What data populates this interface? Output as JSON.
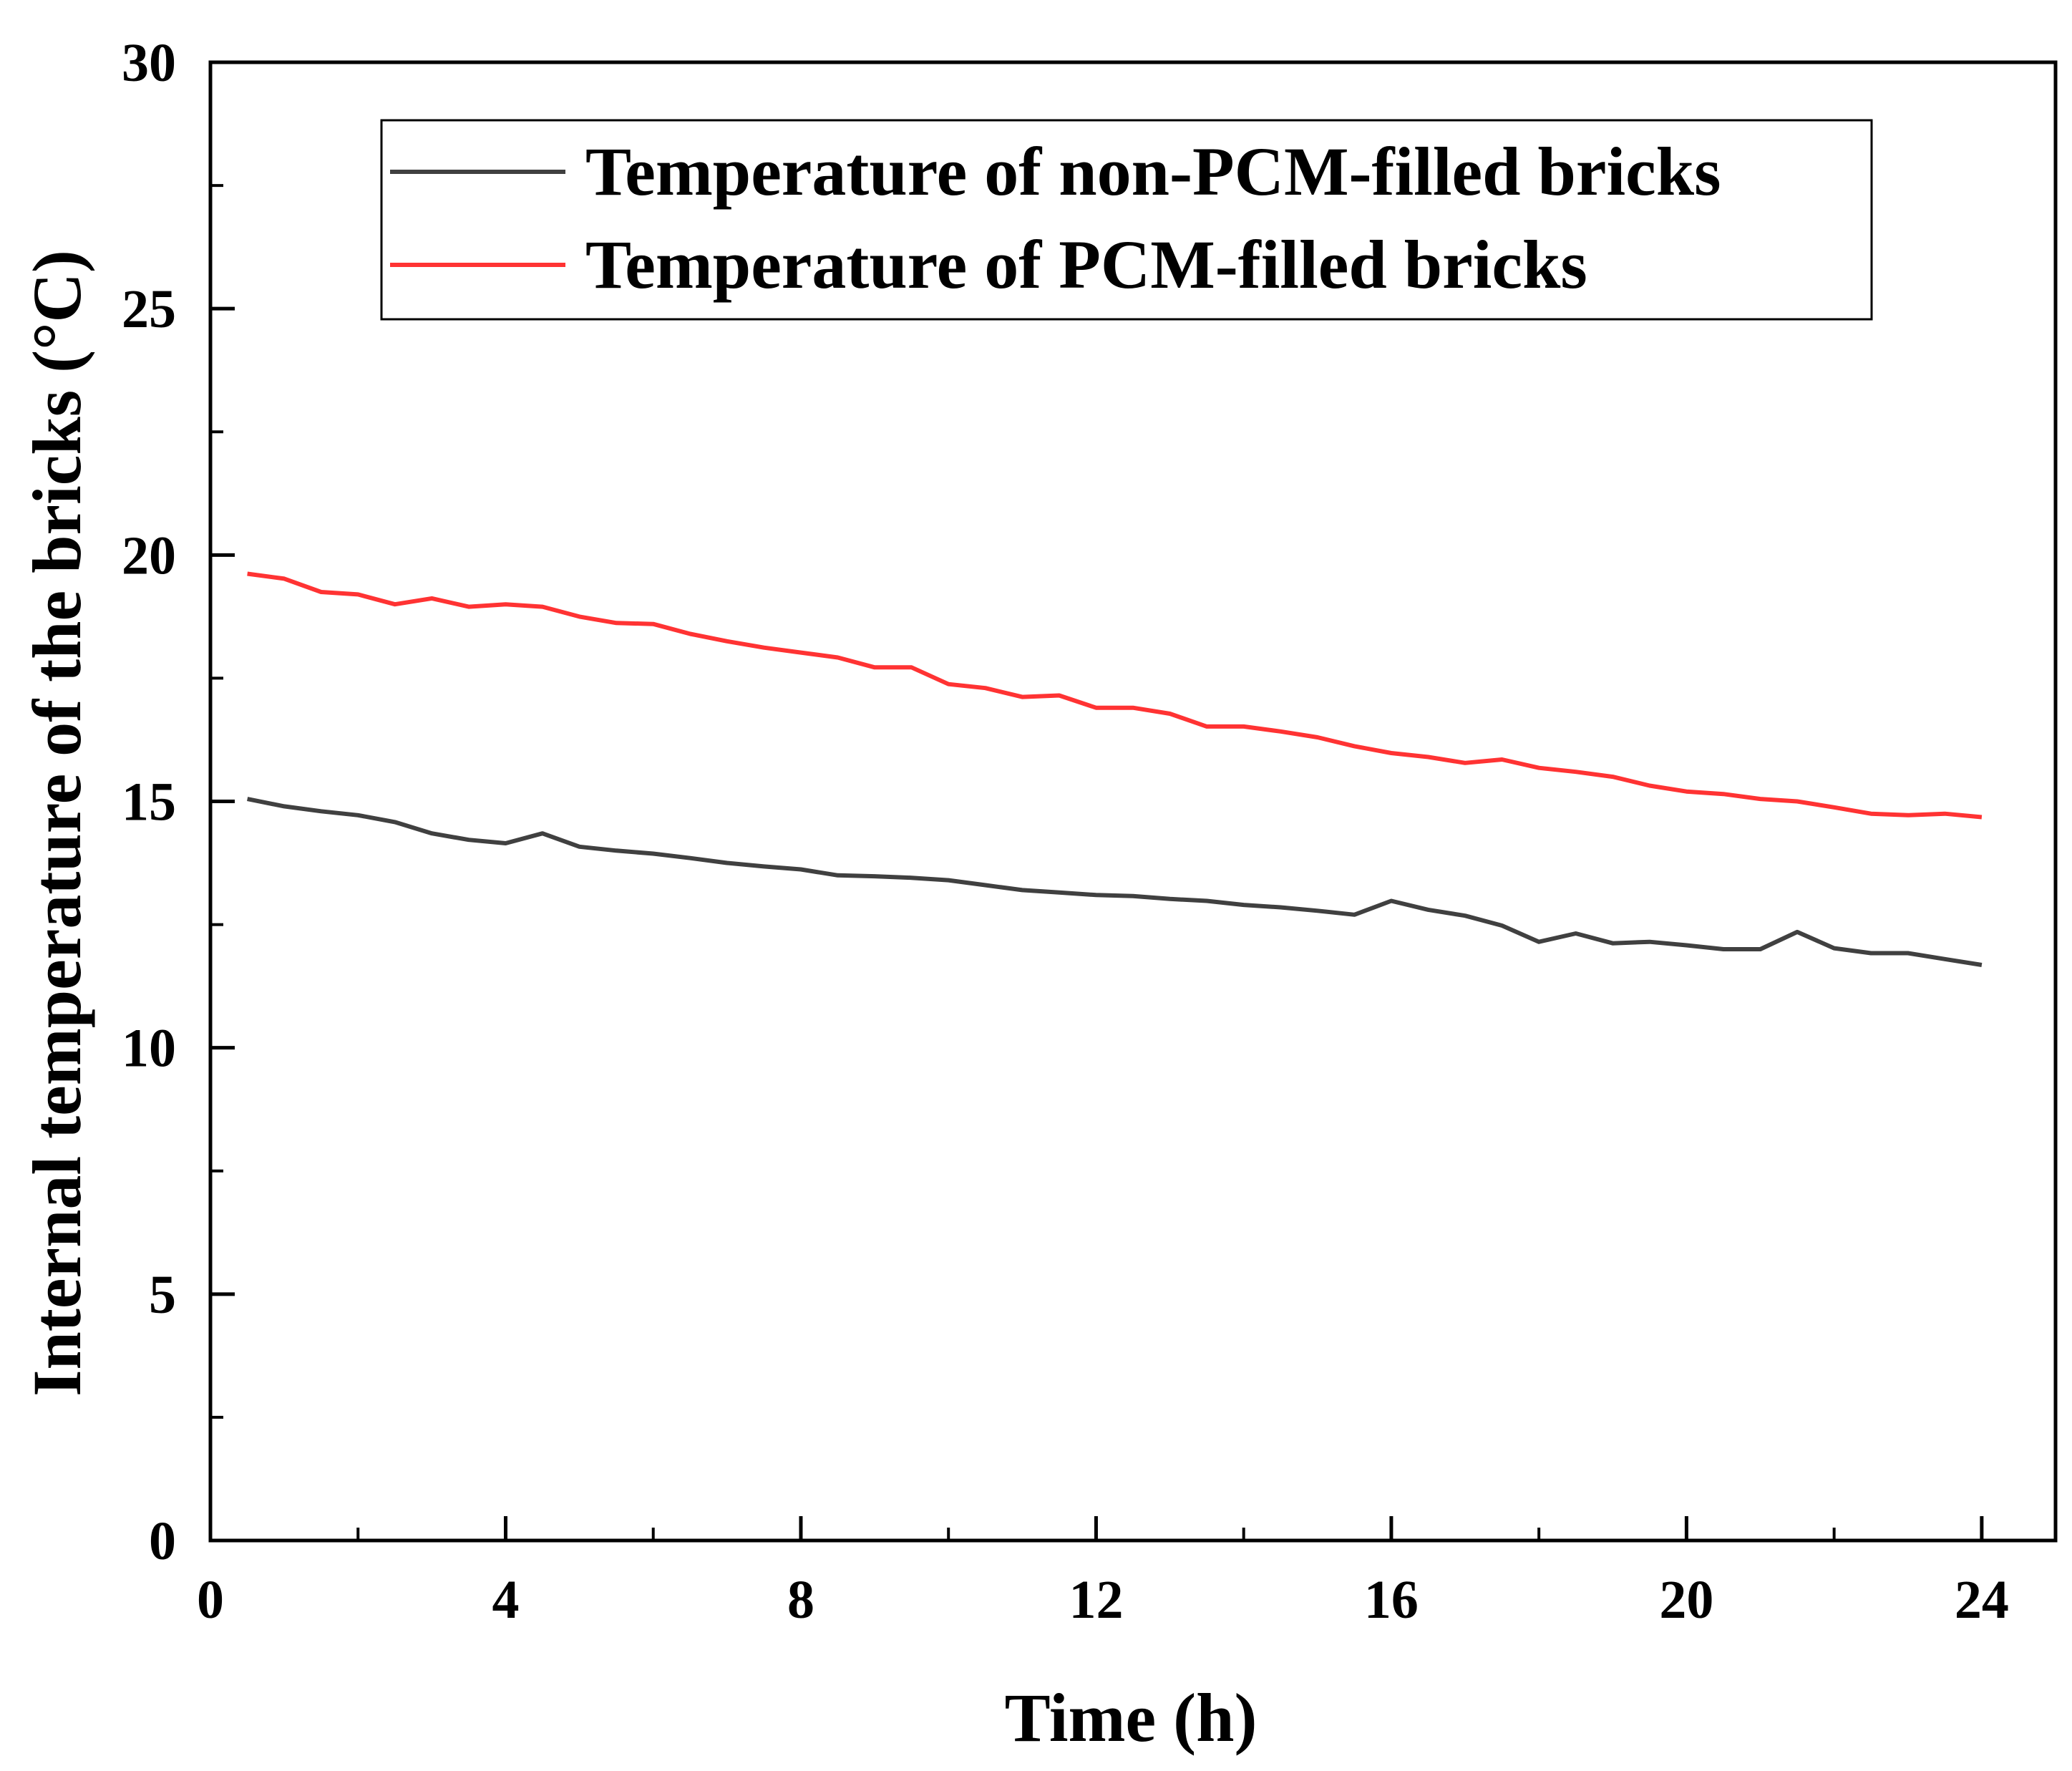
{
  "chart_data": {
    "type": "line",
    "title": "",
    "xlabel": "Time (h)",
    "ylabel": "Internal temperature of the bricks (°C)",
    "xlim": [
      0,
      25
    ],
    "ylim": [
      0,
      30
    ],
    "xticks": [
      0,
      4,
      8,
      12,
      16,
      20,
      24
    ],
    "yticks": [
      0,
      5,
      10,
      15,
      20,
      25,
      30
    ],
    "xtick_labels": [
      "0",
      "4",
      "8",
      "12",
      "16",
      "20",
      "24"
    ],
    "ytick_labels": [
      "0",
      "5",
      "10",
      "15",
      "20",
      "25",
      "30"
    ],
    "grid": false,
    "legend_position": "top-center",
    "x": [
      0.5,
      1,
      1.5,
      2,
      2.5,
      3,
      3.5,
      4,
      4.5,
      5,
      5.5,
      6,
      6.5,
      7,
      7.5,
      8,
      8.5,
      9,
      9.5,
      10,
      10.5,
      11,
      11.5,
      12,
      12.5,
      13,
      13.5,
      14,
      14.5,
      15,
      15.5,
      16,
      16.5,
      17,
      17.5,
      18,
      18.5,
      19,
      19.5,
      20,
      20.5,
      21,
      21.5,
      22,
      22.5,
      23,
      23.5,
      24
    ],
    "series": [
      {
        "name": "Temperature of non-PCM-filled bricks",
        "color": "#404040",
        "values": [
          15.05,
          14.9,
          14.8,
          14.72,
          14.58,
          14.35,
          14.22,
          14.15,
          14.35,
          14.08,
          14.0,
          13.94,
          13.85,
          13.75,
          13.68,
          13.62,
          13.5,
          13.48,
          13.45,
          13.4,
          13.3,
          13.2,
          13.15,
          13.1,
          13.08,
          13.02,
          12.98,
          12.9,
          12.85,
          12.78,
          12.7,
          12.98,
          12.8,
          12.68,
          12.48,
          12.15,
          12.32,
          12.12,
          12.15,
          12.08,
          12.0,
          12.0,
          12.35,
          12.02,
          11.92,
          11.92,
          11.8,
          11.68
        ]
      },
      {
        "name": "Temperature of PCM-filled bricks",
        "color": "#ff3333",
        "values": [
          19.62,
          19.52,
          19.25,
          19.2,
          19.0,
          19.12,
          18.95,
          19.0,
          18.95,
          18.75,
          18.62,
          18.6,
          18.4,
          18.25,
          18.12,
          18.02,
          17.92,
          17.72,
          17.72,
          17.38,
          17.3,
          17.12,
          17.15,
          16.9,
          16.9,
          16.78,
          16.52,
          16.52,
          16.42,
          16.3,
          16.12,
          15.98,
          15.9,
          15.78,
          15.85,
          15.68,
          15.6,
          15.5,
          15.32,
          15.2,
          15.15,
          15.05,
          15.0,
          14.88,
          14.75,
          14.72,
          14.75,
          14.68
        ]
      }
    ]
  }
}
